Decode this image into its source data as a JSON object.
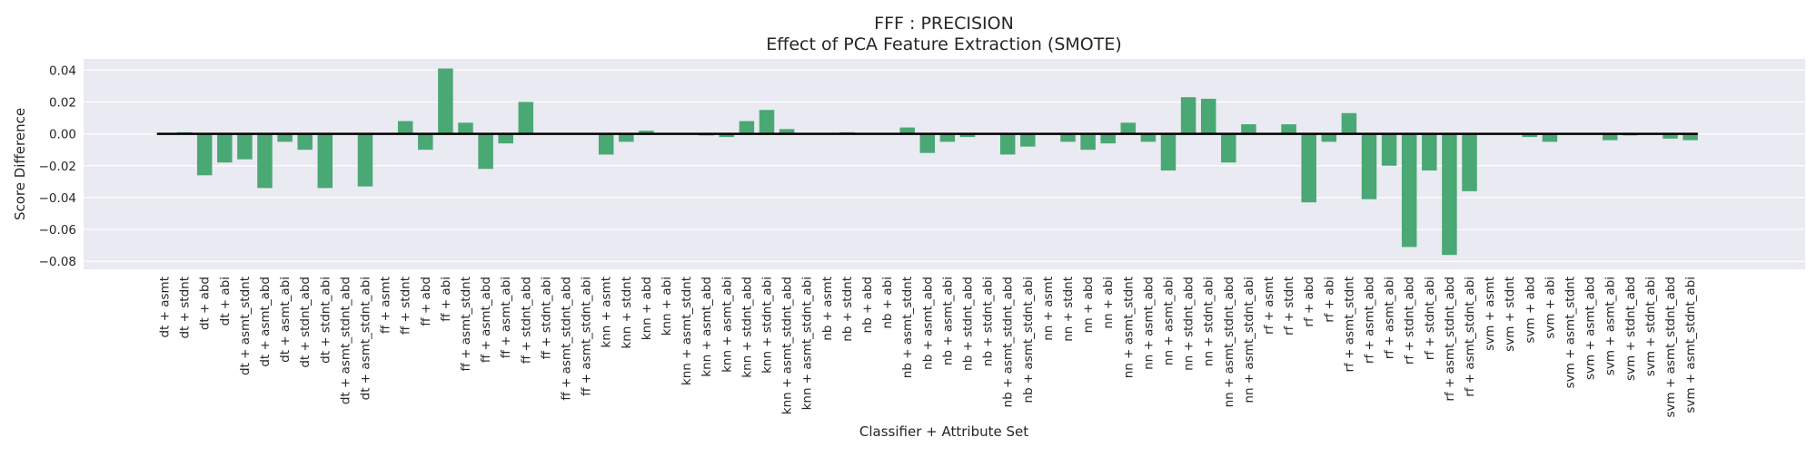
{
  "chart_data": {
    "type": "bar",
    "title": "FFF : PRECISION",
    "subtitle": "Effect of PCA Feature Extraction (SMOTE)",
    "xlabel": "Classifier + Attribute Set",
    "ylabel": "Score Difference",
    "ylim": [
      -0.085,
      0.047
    ],
    "yticks": [
      "0.04",
      "0.02",
      "0.00",
      "−0.02",
      "−0.04",
      "−0.06",
      "−0.08"
    ],
    "ytick_values": [
      0.04,
      0.02,
      0.0,
      -0.02,
      -0.04,
      -0.06,
      -0.08
    ],
    "grid": true,
    "categories": [
      "dt + asmt",
      "dt + stdnt",
      "dt + abd",
      "dt + abi",
      "dt + asmt_stdnt",
      "dt + asmt_abd",
      "dt + asmt_abi",
      "dt + stdnt_abd",
      "dt + stdnt_abi",
      "dt + asmt_stdnt_abd",
      "dt + asmt_stdnt_abi",
      "ff + asmt",
      "ff + stdnt",
      "ff + abd",
      "ff + abi",
      "ff + asmt_stdnt",
      "ff + asmt_abd",
      "ff + asmt_abi",
      "ff + stdnt_abd",
      "ff + stdnt_abi",
      "ff + asmt_stdnt_abd",
      "ff + asmt_stdnt_abi",
      "knn + asmt",
      "knn + stdnt",
      "knn + abd",
      "knn + abi",
      "knn + asmt_stdnt",
      "knn + asmt_abd",
      "knn + asmt_abi",
      "knn + stdnt_abd",
      "knn + stdnt_abi",
      "knn + asmt_stdnt_abd",
      "knn + asmt_stdnt_abi",
      "nb + asmt",
      "nb + stdnt",
      "nb + abd",
      "nb + abi",
      "nb + asmt_stdnt",
      "nb + asmt_abd",
      "nb + asmt_abi",
      "nb + stdnt_abd",
      "nb + stdnt_abi",
      "nb + asmt_stdnt_abd",
      "nb + asmt_stdnt_abi",
      "nn + asmt",
      "nn + stdnt",
      "nn + abd",
      "nn + abi",
      "nn + asmt_stdnt",
      "nn + asmt_abd",
      "nn + asmt_abi",
      "nn + stdnt_abd",
      "nn + stdnt_abi",
      "nn + asmt_stdnt_abd",
      "nn + asmt_stdnt_abi",
      "rf + asmt",
      "rf + stdnt",
      "rf + abd",
      "rf + abi",
      "rf + asmt_stdnt",
      "rf + asmt_abd",
      "rf + asmt_abi",
      "rf + stdnt_abd",
      "rf + stdnt_abi",
      "rf + asmt_stdnt_abd",
      "rf + asmt_stdnt_abi",
      "svm + asmt",
      "svm + stdnt",
      "svm + abd",
      "svm + abi",
      "svm + asmt_stdnt",
      "svm + asmt_abd",
      "svm + asmt_abi",
      "svm + stdnt_abd",
      "svm + stdnt_abi",
      "svm + asmt_stdnt_abd",
      "svm + asmt_stdnt_abi"
    ],
    "values": [
      0.0,
      0.001,
      -0.026,
      -0.018,
      -0.016,
      -0.034,
      -0.005,
      -0.01,
      -0.034,
      0.0,
      -0.033,
      0.0,
      0.008,
      -0.01,
      0.041,
      0.007,
      -0.022,
      -0.006,
      0.02,
      0.0,
      0.0,
      0.0,
      -0.013,
      -0.005,
      0.002,
      0.0,
      0.0,
      -0.001,
      -0.002,
      0.008,
      0.015,
      0.003,
      0.0,
      0.0,
      0.001,
      0.0,
      0.0,
      0.004,
      -0.012,
      -0.005,
      -0.002,
      0.0,
      -0.013,
      -0.008,
      0.0,
      -0.005,
      -0.01,
      -0.006,
      0.007,
      -0.005,
      -0.023,
      0.023,
      0.022,
      -0.018,
      0.006,
      0.0,
      0.006,
      -0.043,
      -0.005,
      0.013,
      -0.041,
      -0.02,
      -0.071,
      -0.023,
      -0.076,
      -0.036,
      0.0,
      0.0,
      -0.002,
      -0.005,
      0.0,
      0.0,
      -0.004,
      -0.001,
      0.0,
      -0.003,
      -0.004
    ],
    "colors": {
      "bar": "#4aa874",
      "plot_background": "#eaeaf2",
      "grid": "#ffffff",
      "zero_line": "#000000"
    }
  }
}
